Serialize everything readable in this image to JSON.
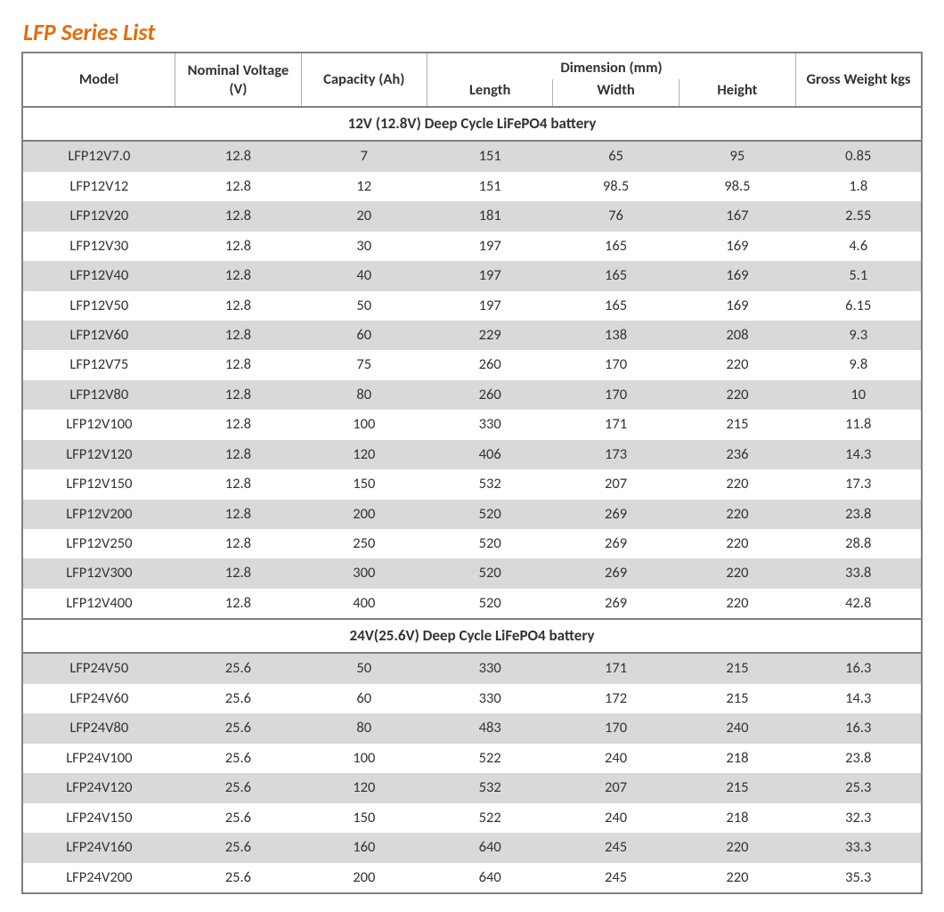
{
  "title": "LFP Series List",
  "colors": {
    "title": "#e36c0a",
    "border": "#808080",
    "headerDivider": "#b0b0b0",
    "shadedRow": "#d9d9d9",
    "whiteRow": "#ffffff",
    "text": "#333333"
  },
  "table": {
    "type": "table",
    "headers": {
      "model": "Model",
      "voltage": "Nominal Voltage (V)",
      "capacity": "Capacity (Ah)",
      "dimension": "Dimension (mm)",
      "length": "Length",
      "width": "Width",
      "height": "Height",
      "weight": "Gross Weight kgs"
    },
    "sections": [
      {
        "title": "12V (12.8V) Deep Cycle LiFePO4 battery",
        "rows": [
          {
            "model": "LFP12V7.0",
            "voltage": "12.8",
            "capacity": "7",
            "length": "151",
            "width": "65",
            "height": "95",
            "weight": "0.85"
          },
          {
            "model": "LFP12V12",
            "voltage": "12.8",
            "capacity": "12",
            "length": "151",
            "width": "98.5",
            "height": "98.5",
            "weight": "1.8"
          },
          {
            "model": "LFP12V20",
            "voltage": "12.8",
            "capacity": "20",
            "length": "181",
            "width": "76",
            "height": "167",
            "weight": "2.55"
          },
          {
            "model": "LFP12V30",
            "voltage": "12.8",
            "capacity": "30",
            "length": "197",
            "width": "165",
            "height": "169",
            "weight": "4.6"
          },
          {
            "model": "LFP12V40",
            "voltage": "12.8",
            "capacity": "40",
            "length": "197",
            "width": "165",
            "height": "169",
            "weight": "5.1"
          },
          {
            "model": "LFP12V50",
            "voltage": "12.8",
            "capacity": "50",
            "length": "197",
            "width": "165",
            "height": "169",
            "weight": "6.15"
          },
          {
            "model": "LFP12V60",
            "voltage": "12.8",
            "capacity": "60",
            "length": "229",
            "width": "138",
            "height": "208",
            "weight": "9.3"
          },
          {
            "model": "LFP12V75",
            "voltage": "12.8",
            "capacity": "75",
            "length": "260",
            "width": "170",
            "height": "220",
            "weight": "9.8"
          },
          {
            "model": "LFP12V80",
            "voltage": "12.8",
            "capacity": "80",
            "length": "260",
            "width": "170",
            "height": "220",
            "weight": "10"
          },
          {
            "model": "LFP12V100",
            "voltage": "12.8",
            "capacity": "100",
            "length": "330",
            "width": "171",
            "height": "215",
            "weight": "11.8"
          },
          {
            "model": "LFP12V120",
            "voltage": "12.8",
            "capacity": "120",
            "length": "406",
            "width": "173",
            "height": "236",
            "weight": "14.3"
          },
          {
            "model": "LFP12V150",
            "voltage": "12.8",
            "capacity": "150",
            "length": "532",
            "width": "207",
            "height": "220",
            "weight": "17.3"
          },
          {
            "model": "LFP12V200",
            "voltage": "12.8",
            "capacity": "200",
            "length": "520",
            "width": "269",
            "height": "220",
            "weight": "23.8"
          },
          {
            "model": "LFP12V250",
            "voltage": "12.8",
            "capacity": "250",
            "length": "520",
            "width": "269",
            "height": "220",
            "weight": "28.8"
          },
          {
            "model": "LFP12V300",
            "voltage": "12.8",
            "capacity": "300",
            "length": "520",
            "width": "269",
            "height": "220",
            "weight": "33.8"
          },
          {
            "model": "LFP12V400",
            "voltage": "12.8",
            "capacity": "400",
            "length": "520",
            "width": "269",
            "height": "220",
            "weight": "42.8"
          }
        ]
      },
      {
        "title": "24V(25.6V) Deep Cycle LiFePO4 battery",
        "rows": [
          {
            "model": "LFP24V50",
            "voltage": "25.6",
            "capacity": "50",
            "length": "330",
            "width": "171",
            "height": "215",
            "weight": "16.3"
          },
          {
            "model": "LFP24V60",
            "voltage": "25.6",
            "capacity": "60",
            "length": "330",
            "width": "172",
            "height": "215",
            "weight": "14.3"
          },
          {
            "model": "LFP24V80",
            "voltage": "25.6",
            "capacity": "80",
            "length": "483",
            "width": "170",
            "height": "240",
            "weight": "16.3"
          },
          {
            "model": "LFP24V100",
            "voltage": "25.6",
            "capacity": "100",
            "length": "522",
            "width": "240",
            "height": "218",
            "weight": "23.8"
          },
          {
            "model": "LFP24V120",
            "voltage": "25.6",
            "capacity": "120",
            "length": "532",
            "width": "207",
            "height": "215",
            "weight": "25.3"
          },
          {
            "model": "LFP24V150",
            "voltage": "25.6",
            "capacity": "150",
            "length": "522",
            "width": "240",
            "height": "218",
            "weight": "32.3"
          },
          {
            "model": "LFP24V160",
            "voltage": "25.6",
            "capacity": "160",
            "length": "640",
            "width": "245",
            "height": "220",
            "weight": "33.3"
          },
          {
            "model": "LFP24V200",
            "voltage": "25.6",
            "capacity": "200",
            "length": "640",
            "width": "245",
            "height": "220",
            "weight": "35.3"
          }
        ]
      }
    ],
    "columnWidths": [
      "17%",
      "14%",
      "14%",
      "14%",
      "14%",
      "13%",
      "14%"
    ]
  }
}
